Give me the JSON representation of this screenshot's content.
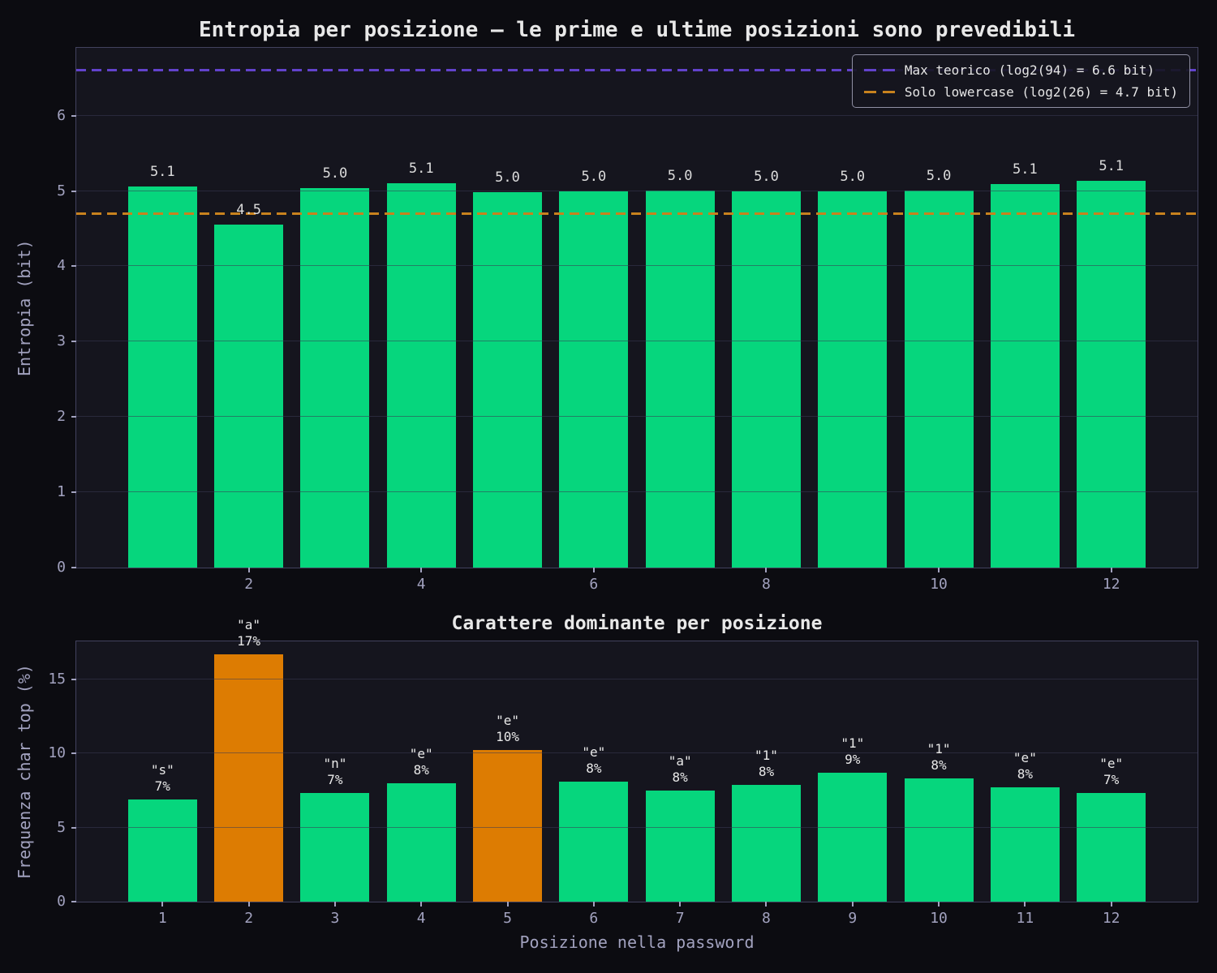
{
  "figure": {
    "background": "#0c0c11",
    "panel_background": "#15151e",
    "spine_color": "#42425e",
    "tick_color": "#a2a2bf",
    "text_color": "#e8e8e8",
    "green": "#06d67d",
    "orange": "#dd7c02"
  },
  "chart_data": [
    {
      "type": "bar",
      "title": "Entropia per posizione — le prime e ultime posizioni sono prevedibili",
      "ylabel": "Entropia (bit)",
      "xlabel": "",
      "categories": [
        1,
        2,
        3,
        4,
        5,
        6,
        7,
        8,
        9,
        10,
        11,
        12
      ],
      "values": [
        5.06,
        4.55,
        5.04,
        5.1,
        4.98,
        5.0,
        5.01,
        5.0,
        5.0,
        5.01,
        5.09,
        5.14
      ],
      "bar_labels": [
        "5.1",
        "4.5",
        "5.0",
        "5.1",
        "5.0",
        "5.0",
        "5.0",
        "5.0",
        "5.0",
        "5.0",
        "5.1",
        "5.1"
      ],
      "bar_color": "#06d67d",
      "ylim": [
        0,
        6.9
      ],
      "xlim": [
        0,
        13
      ],
      "yticks": [
        0,
        1,
        2,
        3,
        4,
        5,
        6
      ],
      "xticks": [
        2,
        4,
        6,
        8,
        10,
        12
      ],
      "grid": true,
      "legend_position": "upper right",
      "reference_lines": [
        {
          "label": "Max teorico (log2(94) = 6.6 bit)",
          "value": 6.6,
          "color": "#6242cc",
          "style": "dashed"
        },
        {
          "label": "Solo lowercase (log2(26) = 4.7 bit)",
          "value": 4.7,
          "color": "#c8821e",
          "style": "dashed"
        }
      ]
    },
    {
      "type": "bar",
      "title": "Carattere dominante per posizione",
      "ylabel": "Frequenza char top (%)",
      "xlabel": "Posizione nella password",
      "categories": [
        1,
        2,
        3,
        4,
        5,
        6,
        7,
        8,
        9,
        10,
        11,
        12
      ],
      "values": [
        6.9,
        16.7,
        7.3,
        8.0,
        10.2,
        8.1,
        7.5,
        7.9,
        8.7,
        8.3,
        7.7,
        7.3
      ],
      "char_labels": [
        "\"s\"",
        "\"a\"",
        "\"n\"",
        "\"e\"",
        "\"e\"",
        "\"e\"",
        "\"a\"",
        "\"1\"",
        "\"1\"",
        "\"1\"",
        "\"e\"",
        "\"e\""
      ],
      "pct_labels": [
        "7%",
        "17%",
        "7%",
        "8%",
        "10%",
        "8%",
        "8%",
        "8%",
        "9%",
        "8%",
        "8%",
        "7%"
      ],
      "bar_colors": [
        "#06d67d",
        "#dd7c02",
        "#06d67d",
        "#06d67d",
        "#dd7c02",
        "#06d67d",
        "#06d67d",
        "#06d67d",
        "#06d67d",
        "#06d67d",
        "#06d67d",
        "#06d67d"
      ],
      "highlighted_positions": [
        2,
        5
      ],
      "ylim": [
        0,
        17.55
      ],
      "xlim": [
        0,
        13
      ],
      "yticks": [
        0,
        5,
        10,
        15
      ],
      "xticks": [
        1,
        2,
        3,
        4,
        5,
        6,
        7,
        8,
        9,
        10,
        11,
        12
      ],
      "grid": true
    }
  ]
}
